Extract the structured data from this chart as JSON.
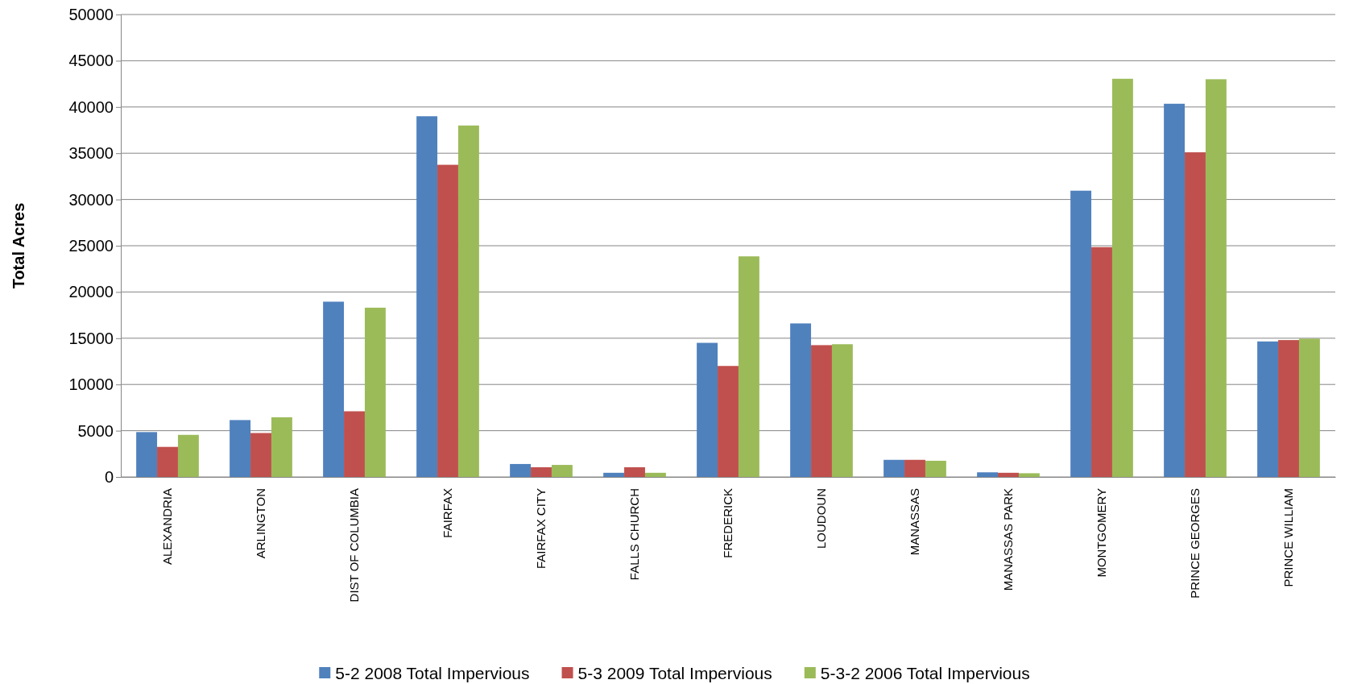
{
  "chart_data": {
    "type": "bar",
    "ylabel": "Total Acres",
    "categories": [
      "ALEXANDRIA",
      "ARLINGTON",
      "DIST OF COLUMBIA",
      "FAIRFAX",
      "FAIRFAX CITY",
      "FALLS CHURCH",
      "FREDERICK",
      "LOUDOUN",
      "MANASSAS",
      "MANASSAS PARK",
      "MONTGOMERY",
      "PRINCE GEORGES",
      "PRINCE WILLIAM"
    ],
    "series": [
      {
        "name": "5-2 2008 Total Impervious",
        "color": "#4f81bd",
        "values": [
          4850,
          6150,
          18950,
          39000,
          1400,
          450,
          14500,
          16600,
          1850,
          500,
          30950,
          40350,
          14650
        ]
      },
      {
        "name": "5-3 2009 Total Impervious",
        "color": "#c0504d",
        "values": [
          3250,
          4750,
          7100,
          33750,
          1050,
          1050,
          12000,
          14250,
          1850,
          450,
          24850,
          35100,
          14800
        ]
      },
      {
        "name": "5-3-2 2006 Total Impervious",
        "color": "#9bbb59",
        "values": [
          4550,
          6450,
          18300,
          38000,
          1300,
          450,
          23850,
          14350,
          1750,
          400,
          43050,
          43000,
          14950
        ]
      }
    ],
    "ylim": [
      0,
      50000
    ],
    "yticks": [
      0,
      5000,
      10000,
      15000,
      20000,
      25000,
      30000,
      35000,
      40000,
      45000,
      50000
    ],
    "grid": "y",
    "legend": "bottom"
  }
}
